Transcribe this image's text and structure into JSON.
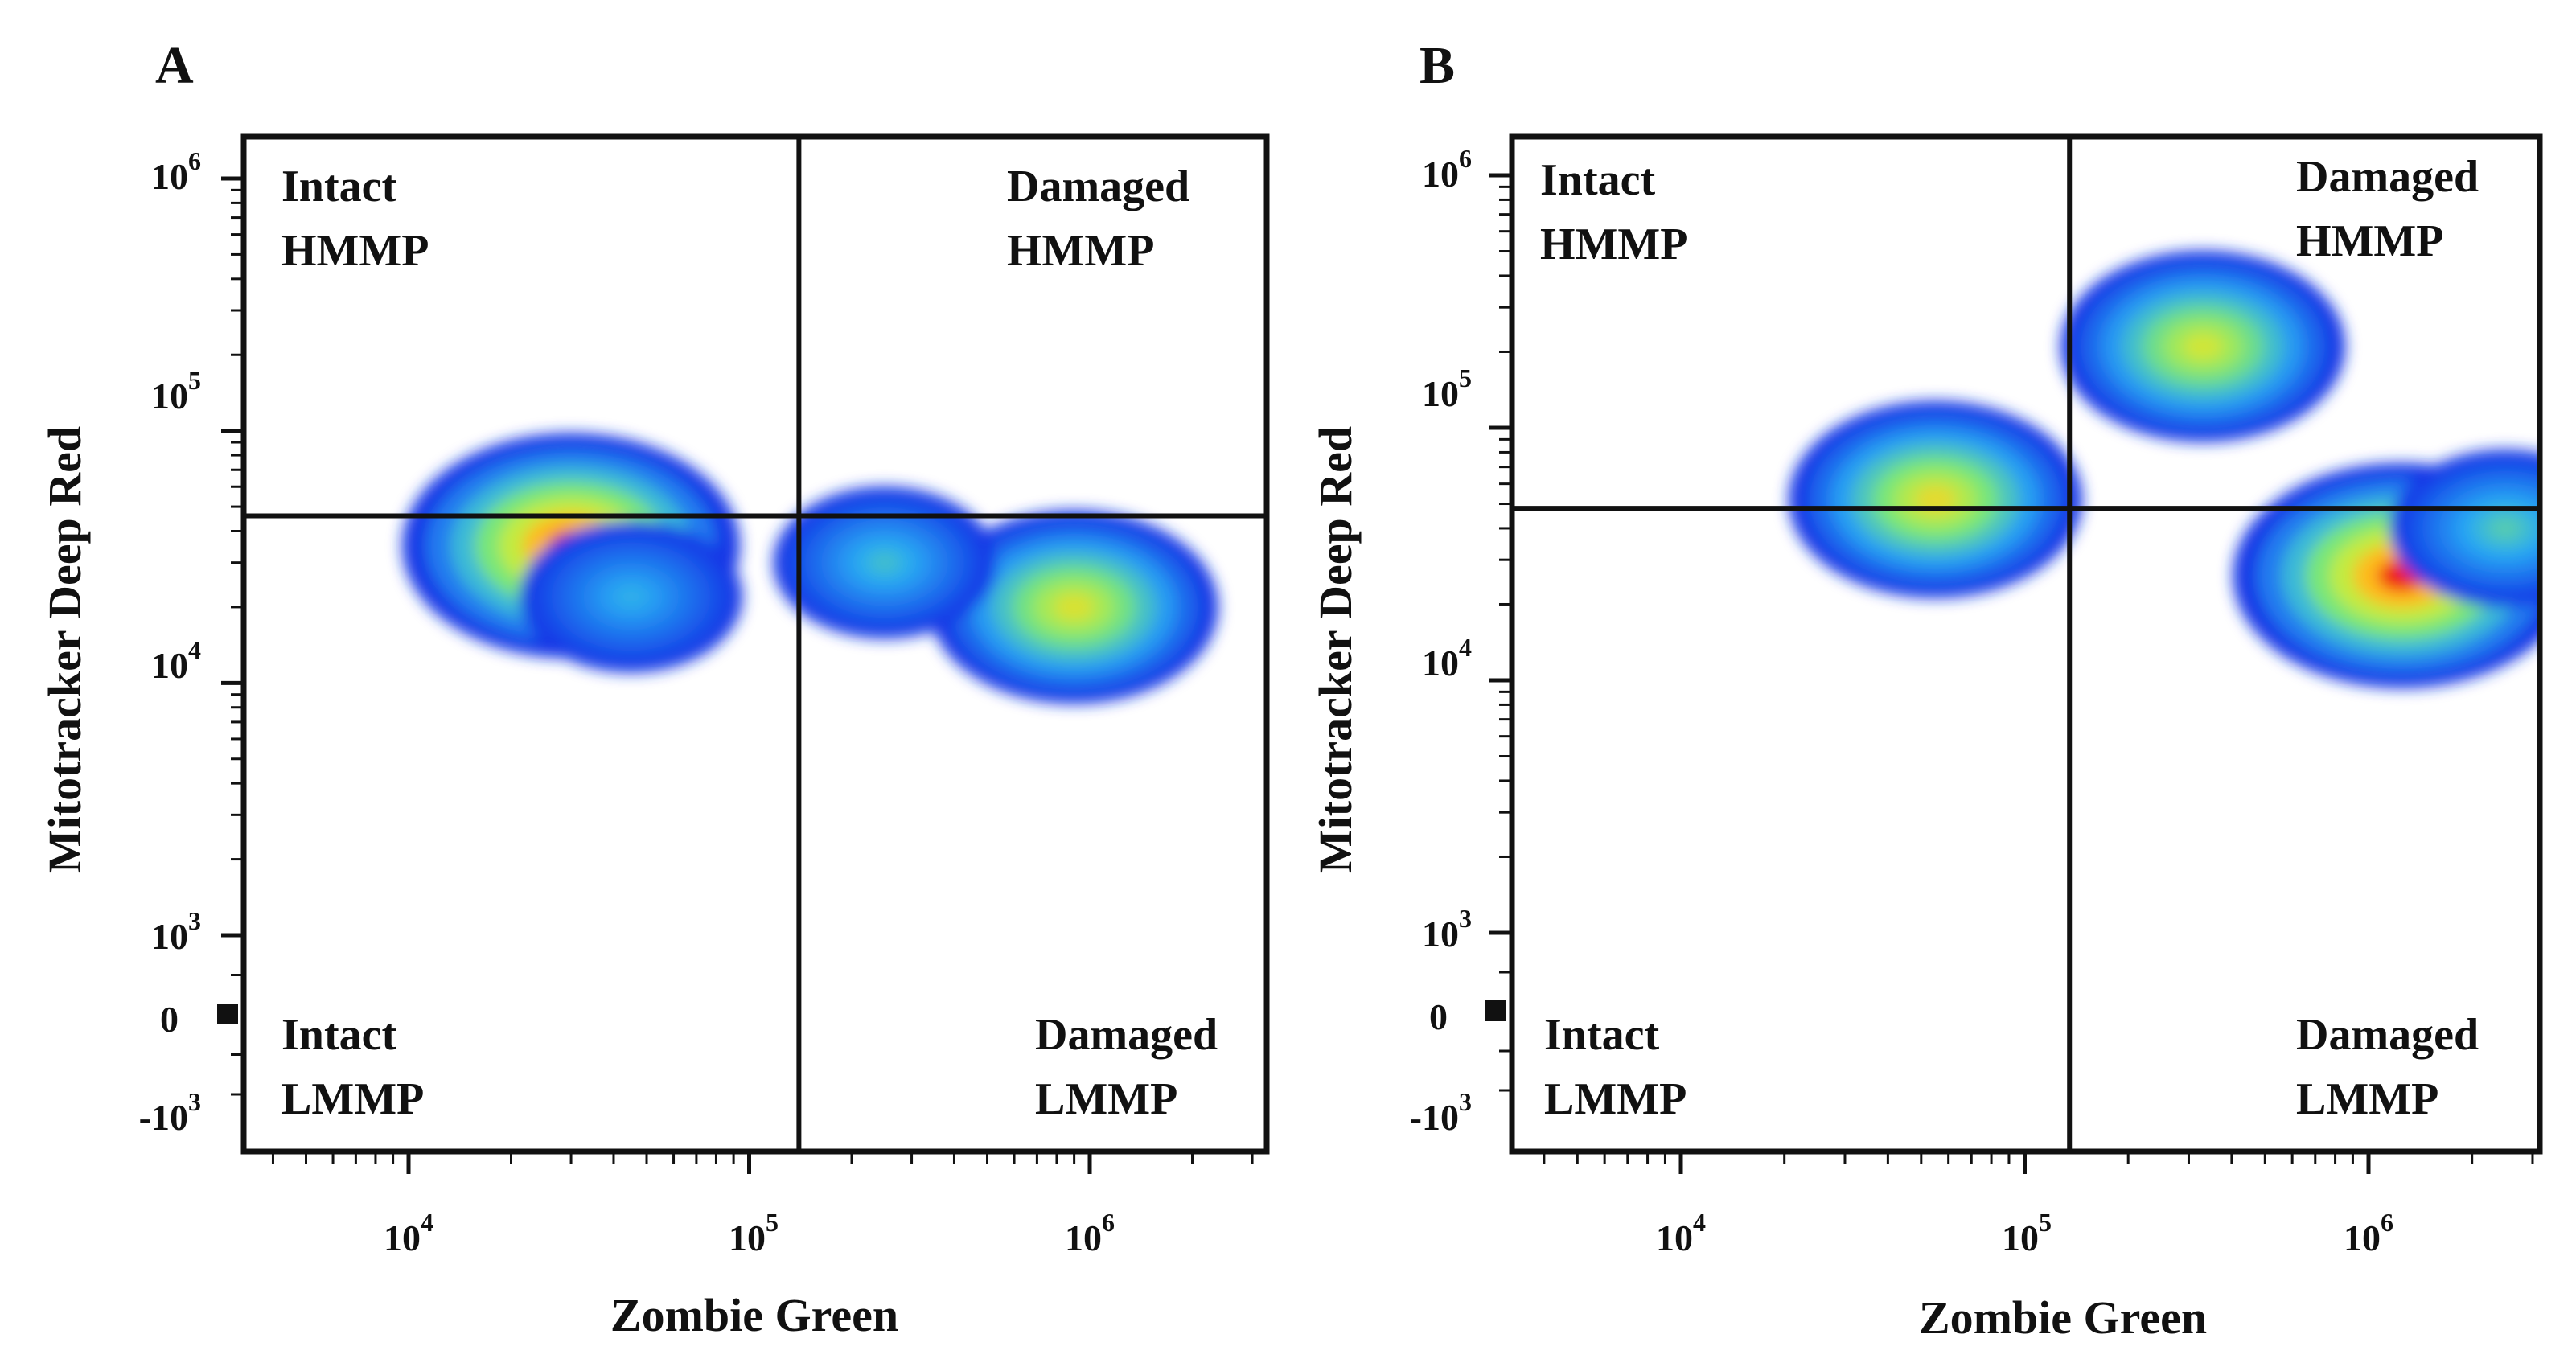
{
  "chart_data": [
    {
      "type": "density-scatter",
      "panel_label": "A",
      "xlabel": "Zombie Green",
      "ylabel": "Mitotracker Deep Red",
      "x_scale": "log",
      "y_scale": "biexponential",
      "xlim": [
        3000,
        3000000
      ],
      "ylim": [
        -2500,
        2000000
      ],
      "x_ticks": [
        {
          "base": "10",
          "exp": "4",
          "value": 10000
        },
        {
          "base": "10",
          "exp": "5",
          "value": 100000
        },
        {
          "base": "10",
          "exp": "6",
          "value": 1000000
        }
      ],
      "y_ticks": [
        {
          "base": "10",
          "exp": "6",
          "value": 1000000
        },
        {
          "base": "10",
          "exp": "5",
          "value": 100000
        },
        {
          "base": "10",
          "exp": "4",
          "value": 10000
        },
        {
          "base": "10",
          "exp": "3",
          "value": 1000
        },
        {
          "base": "0",
          "exp": "",
          "value": 0
        },
        {
          "base": "-10",
          "exp": "3",
          "value": -1000
        }
      ],
      "gate": {
        "x": 140000,
        "y": 46000
      },
      "quadrants": [
        {
          "line1": "Intact",
          "line2": "HMMP",
          "position": "top-left"
        },
        {
          "line1": "Damaged",
          "line2": "HMMP",
          "position": "top-right"
        },
        {
          "line1": "Intact",
          "line2": "LMMP",
          "position": "bottom-left"
        },
        {
          "line1": "Damaged",
          "line2": "LMMP",
          "position": "bottom-right"
        }
      ],
      "populations": [
        {
          "x": 30000,
          "y": 35000,
          "peak": 1.0
        },
        {
          "x": 45000,
          "y": 22000,
          "peak": 0.3
        },
        {
          "x": 900000,
          "y": 20000,
          "peak": 0.72
        },
        {
          "x": 250000,
          "y": 30000,
          "peak": 0.35
        }
      ]
    },
    {
      "type": "density-scatter",
      "panel_label": "B",
      "xlabel": "Zombie Green",
      "ylabel": "Mitotracker Deep Red",
      "x_scale": "log",
      "y_scale": "biexponential",
      "xlim": [
        3000,
        3000000
      ],
      "ylim": [
        -2500,
        2000000
      ],
      "x_ticks": [
        {
          "base": "10",
          "exp": "4",
          "value": 10000
        },
        {
          "base": "10",
          "exp": "5",
          "value": 100000
        },
        {
          "base": "10",
          "exp": "6",
          "value": 1000000
        }
      ],
      "y_ticks": [
        {
          "base": "10",
          "exp": "6",
          "value": 1000000
        },
        {
          "base": "10",
          "exp": "5",
          "value": 100000
        },
        {
          "base": "10",
          "exp": "4",
          "value": 10000
        },
        {
          "base": "10",
          "exp": "3",
          "value": 1000
        },
        {
          "base": "0",
          "exp": "",
          "value": 0
        },
        {
          "base": "-10",
          "exp": "3",
          "value": -1000
        }
      ],
      "gate": {
        "x": 135000,
        "y": 48000
      },
      "quadrants": [
        {
          "line1": "Intact",
          "line2": "HMMP",
          "position": "top-left"
        },
        {
          "line1": "Damaged",
          "line2": "HMMP",
          "position": "top-right"
        },
        {
          "line1": "Intact",
          "line2": "LMMP",
          "position": "bottom-left"
        },
        {
          "line1": "Damaged",
          "line2": "LMMP",
          "position": "bottom-right"
        }
      ],
      "populations": [
        {
          "x": 55000,
          "y": 52000,
          "peak": 0.75
        },
        {
          "x": 330000,
          "y": 210000,
          "peak": 0.7
        },
        {
          "x": 1250000,
          "y": 26000,
          "peak": 1.0
        },
        {
          "x": 2500000,
          "y": 40000,
          "peak": 0.4
        }
      ]
    }
  ]
}
